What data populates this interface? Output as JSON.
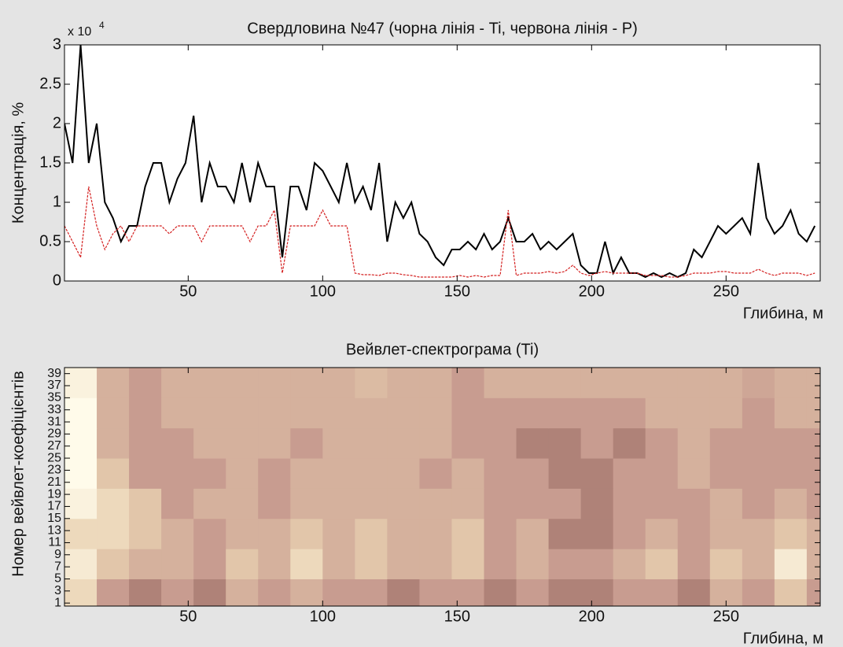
{
  "chart_data": [
    {
      "type": "line",
      "title": "Свердловина №47 (чорна лінія - Ti, червона лінія - P)",
      "ylabel": "Концентрація, %",
      "xlabel": "Глибина, м",
      "y_multiplier": {
        "base": "x 10",
        "exponent": "4"
      },
      "xlim": [
        4,
        285
      ],
      "xticks": [
        50,
        100,
        150,
        200,
        250
      ],
      "ylim": [
        0,
        3
      ],
      "yticks": [
        0,
        0.5,
        1,
        1.5,
        2,
        2.5,
        3
      ],
      "grid": false,
      "x": [
        4,
        7,
        10,
        13,
        16,
        19,
        22,
        25,
        28,
        31,
        34,
        37,
        40,
        43,
        46,
        49,
        52,
        55,
        58,
        61,
        64,
        67,
        70,
        73,
        76,
        79,
        82,
        85,
        88,
        91,
        94,
        97,
        100,
        103,
        106,
        109,
        112,
        115,
        118,
        121,
        124,
        127,
        130,
        133,
        136,
        139,
        142,
        145,
        148,
        151,
        154,
        157,
        160,
        163,
        166,
        169,
        172,
        175,
        178,
        181,
        184,
        187,
        190,
        193,
        196,
        199,
        202,
        205,
        208,
        211,
        214,
        217,
        220,
        223,
        226,
        229,
        232,
        235,
        238,
        241,
        244,
        247,
        250,
        253,
        256,
        259,
        262,
        265,
        268,
        271,
        274,
        277,
        280,
        283
      ],
      "series": [
        {
          "name": "Ti",
          "color": "#000000",
          "values": [
            2.0,
            1.5,
            3.0,
            1.5,
            2.0,
            1.0,
            0.8,
            0.5,
            0.7,
            0.7,
            1.2,
            1.5,
            1.5,
            1.0,
            1.3,
            1.5,
            2.1,
            1.0,
            1.5,
            1.2,
            1.2,
            1.0,
            1.5,
            1.0,
            1.5,
            1.2,
            1.2,
            0.3,
            1.2,
            1.2,
            0.9,
            1.5,
            1.4,
            1.2,
            1.0,
            1.5,
            1.0,
            1.2,
            0.9,
            1.5,
            0.5,
            1.0,
            0.8,
            1.0,
            0.6,
            0.5,
            0.3,
            0.2,
            0.4,
            0.4,
            0.5,
            0.4,
            0.6,
            0.4,
            0.5,
            0.8,
            0.5,
            0.5,
            0.6,
            0.4,
            0.5,
            0.4,
            0.5,
            0.6,
            0.2,
            0.1,
            0.1,
            0.5,
            0.1,
            0.3,
            0.1,
            0.1,
            0.05,
            0.1,
            0.05,
            0.1,
            0.05,
            0.1,
            0.4,
            0.3,
            0.5,
            0.7,
            0.6,
            0.7,
            0.8,
            0.6,
            1.5,
            0.8,
            0.6,
            0.7,
            0.9,
            0.6,
            0.5,
            0.7
          ]
        },
        {
          "name": "P",
          "color": "#d42020",
          "values": [
            0.7,
            0.5,
            0.3,
            1.2,
            0.7,
            0.4,
            0.6,
            0.7,
            0.5,
            0.7,
            0.7,
            0.7,
            0.7,
            0.6,
            0.7,
            0.7,
            0.7,
            0.5,
            0.7,
            0.7,
            0.7,
            0.7,
            0.7,
            0.5,
            0.7,
            0.7,
            0.9,
            0.1,
            0.7,
            0.7,
            0.7,
            0.7,
            0.9,
            0.7,
            0.7,
            0.7,
            0.1,
            0.08,
            0.08,
            0.07,
            0.1,
            0.1,
            0.08,
            0.07,
            0.05,
            0.05,
            0.05,
            0.05,
            0.05,
            0.07,
            0.05,
            0.07,
            0.05,
            0.07,
            0.07,
            0.9,
            0.07,
            0.1,
            0.1,
            0.1,
            0.12,
            0.1,
            0.12,
            0.2,
            0.1,
            0.07,
            0.1,
            0.12,
            0.1,
            0.1,
            0.1,
            0.1,
            0.07,
            0.07,
            0.07,
            0.05,
            0.05,
            0.07,
            0.1,
            0.1,
            0.1,
            0.12,
            0.12,
            0.1,
            0.1,
            0.1,
            0.15,
            0.1,
            0.07,
            0.1,
            0.1,
            0.1,
            0.07,
            0.1
          ]
        }
      ]
    },
    {
      "type": "heatmap",
      "title": "Вейвлет-спектрограма (Ti)",
      "ylabel": "Номер вейвлет-коефіцієнтів",
      "xlabel": "Глибина, м",
      "xlim": [
        4,
        285
      ],
      "xticks": [
        50,
        100,
        150,
        200,
        250
      ],
      "ylim": [
        0.5,
        40
      ],
      "yticks": [
        1,
        3,
        5,
        7,
        9,
        11,
        13,
        15,
        17,
        19,
        21,
        23,
        25,
        27,
        29,
        31,
        33,
        35,
        37,
        39
      ],
      "colormap": [
        "#2a1212",
        "#8a5a55",
        "#c89c90",
        "#e8d0b0",
        "#fffbea"
      ],
      "x": [
        10,
        22,
        34,
        46,
        58,
        70,
        82,
        94,
        106,
        118,
        130,
        142,
        154,
        166,
        178,
        190,
        202,
        214,
        226,
        238,
        250,
        262,
        274,
        286
      ],
      "y": [
        2.5,
        7.5,
        12.5,
        17.5,
        22.5,
        27.5,
        32.5,
        37.5
      ],
      "z": [
        [
          0.8,
          0.5,
          0.4,
          0.5,
          0.4,
          0.6,
          0.5,
          0.6,
          0.5,
          0.5,
          0.4,
          0.5,
          0.5,
          0.4,
          0.5,
          0.4,
          0.4,
          0.5,
          0.5,
          0.4,
          0.6,
          0.5,
          0.7,
          0.5
        ],
        [
          0.9,
          0.7,
          0.6,
          0.6,
          0.5,
          0.7,
          0.6,
          0.8,
          0.6,
          0.7,
          0.6,
          0.6,
          0.7,
          0.5,
          0.6,
          0.5,
          0.5,
          0.6,
          0.7,
          0.5,
          0.7,
          0.6,
          0.9,
          0.6
        ],
        [
          0.8,
          0.8,
          0.7,
          0.6,
          0.5,
          0.6,
          0.6,
          0.7,
          0.6,
          0.7,
          0.6,
          0.6,
          0.7,
          0.5,
          0.6,
          0.4,
          0.4,
          0.5,
          0.6,
          0.5,
          0.6,
          0.6,
          0.7,
          0.6
        ],
        [
          0.95,
          0.8,
          0.7,
          0.5,
          0.6,
          0.6,
          0.5,
          0.6,
          0.6,
          0.6,
          0.6,
          0.6,
          0.6,
          0.5,
          0.5,
          0.5,
          0.4,
          0.5,
          0.5,
          0.5,
          0.6,
          0.5,
          0.6,
          0.5
        ],
        [
          1.0,
          0.7,
          0.5,
          0.5,
          0.5,
          0.6,
          0.5,
          0.6,
          0.6,
          0.6,
          0.6,
          0.5,
          0.6,
          0.5,
          0.5,
          0.4,
          0.4,
          0.5,
          0.5,
          0.6,
          0.5,
          0.5,
          0.5,
          0.5
        ],
        [
          1.0,
          0.6,
          0.5,
          0.5,
          0.6,
          0.6,
          0.6,
          0.5,
          0.6,
          0.6,
          0.6,
          0.6,
          0.5,
          0.5,
          0.4,
          0.4,
          0.5,
          0.4,
          0.5,
          0.6,
          0.5,
          0.5,
          0.5,
          0.5
        ],
        [
          1.0,
          0.6,
          0.5,
          0.6,
          0.6,
          0.6,
          0.6,
          0.6,
          0.6,
          0.6,
          0.6,
          0.6,
          0.5,
          0.5,
          0.5,
          0.5,
          0.5,
          0.5,
          0.6,
          0.6,
          0.6,
          0.5,
          0.6,
          0.6
        ],
        [
          0.95,
          0.6,
          0.5,
          0.6,
          0.6,
          0.6,
          0.6,
          0.6,
          0.6,
          0.65,
          0.6,
          0.6,
          0.5,
          0.6,
          0.6,
          0.6,
          0.6,
          0.6,
          0.6,
          0.6,
          0.6,
          0.55,
          0.6,
          0.6
        ]
      ]
    }
  ]
}
